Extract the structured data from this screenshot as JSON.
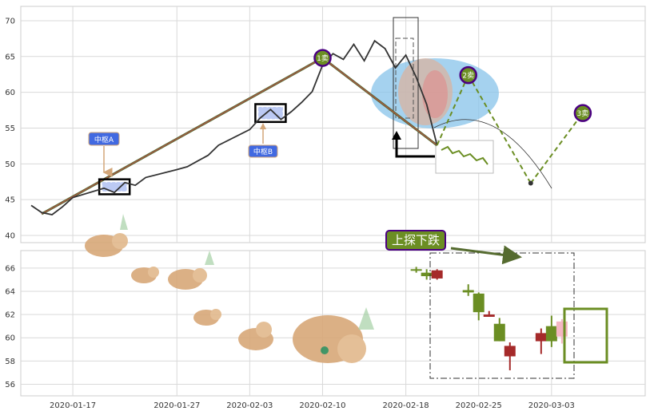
{
  "colors": {
    "price_line": "#333333",
    "grid": "#d9d9d9",
    "axis_box": "#cccccc",
    "up_candle": "#6b8e23",
    "down_candle": "#a52a2a",
    "pivot_fill": "#4169e1",
    "stroke_line": "#556b2f",
    "ellipse_fill": "#87c3ea",
    "badge_fill": "#6b8e23",
    "badge_border": "#4b0082"
  },
  "chart_data": [
    {
      "type": "line",
      "panel": "top",
      "ylim": [
        39,
        72
      ],
      "yticks": [
        40,
        45,
        50,
        55,
        60,
        65,
        70
      ],
      "xlim": [
        "2020-01-12",
        "2020-03-12"
      ],
      "xticks": [
        "2020-01-17",
        "2020-01-27",
        "2020-02-03",
        "2020-02-10",
        "2020-02-18",
        "2020-02-25",
        "2020-03-03"
      ],
      "series": [
        {
          "values": [
            [
              "2020-01-13",
              44.2
            ],
            [
              "2020-01-14",
              43.2
            ],
            [
              "2020-01-15",
              42.9
            ],
            [
              "2020-01-16",
              44.0
            ],
            [
              "2020-01-17",
              45.3
            ],
            [
              "2020-01-20",
              46.6
            ],
            [
              "2020-01-21",
              46.0
            ],
            [
              "2020-01-22",
              47.4
            ],
            [
              "2020-01-23",
              47.0
            ],
            [
              "2020-01-24",
              48.1
            ],
            [
              "2020-01-27",
              49.2
            ],
            [
              "2020-01-28",
              49.6
            ],
            [
              "2020-01-29",
              50.4
            ],
            [
              "2020-01-30",
              51.2
            ],
            [
              "2020-01-31",
              52.6
            ],
            [
              "2020-02-03",
              54.8
            ],
            [
              "2020-02-04",
              56.4
            ],
            [
              "2020-02-05",
              57.6
            ],
            [
              "2020-02-06",
              56.2
            ],
            [
              "2020-02-07",
              57.3
            ],
            [
              "2020-02-08",
              58.6
            ],
            [
              "2020-02-09",
              60.1
            ],
            [
              "2020-02-10",
              63.8
            ],
            [
              "2020-02-11",
              65.4
            ],
            [
              "2020-02-12",
              64.6
            ],
            [
              "2020-02-13",
              66.7
            ],
            [
              "2020-02-14",
              64.4
            ],
            [
              "2020-02-15",
              67.2
            ],
            [
              "2020-02-16",
              66.1
            ],
            [
              "2020-02-17",
              63.4
            ],
            [
              "2020-02-18",
              65.2
            ],
            [
              "2020-02-19",
              62.1
            ],
            [
              "2020-02-20",
              58.3
            ],
            [
              "2020-02-21",
              52.6
            ]
          ]
        }
      ],
      "pivots": [
        {
          "label": "中枢A",
          "x_start": "2020-01-20",
          "x_end": "2020-01-22",
          "y_low": 46.2,
          "y_high": 47.4
        },
        {
          "label": "中枢B",
          "x_start": "2020-02-04",
          "x_end": "2020-02-06",
          "y_low": 56.3,
          "y_high": 57.9
        }
      ],
      "strokes": [
        {
          "from": [
            "2020-01-14",
            43.0
          ],
          "to": [
            "2020-02-10",
            64.8
          ]
        },
        {
          "from": [
            "2020-02-10",
            64.8
          ],
          "to": [
            "2020-02-21",
            52.6
          ]
        }
      ],
      "forecast": [
        {
          "from": [
            "2020-02-21",
            52.6
          ],
          "to": [
            "2020-02-24",
            62.4
          ]
        },
        {
          "from": [
            "2020-02-24",
            62.4
          ],
          "to": [
            "2020-03-01",
            47.3
          ]
        },
        {
          "from": [
            "2020-03-01",
            47.3
          ],
          "to": [
            "2020-03-06",
            57.1
          ]
        }
      ],
      "badges": [
        {
          "label": "1卖",
          "x": "2020-02-10",
          "y": 64.8
        },
        {
          "label": "2卖",
          "x": "2020-02-24",
          "y": 62.4
        },
        {
          "label": "3卖",
          "x": "2020-03-06",
          "y": 57.1
        }
      ]
    },
    {
      "type": "candlestick",
      "panel": "bottom",
      "ylim": [
        55,
        67.5
      ],
      "yticks": [
        56,
        58,
        60,
        62,
        64,
        66
      ],
      "candles": [
        {
          "date": "2020-02-19",
          "open": 65.9,
          "high": 66.1,
          "low": 65.6,
          "close": 65.8,
          "color": "up"
        },
        {
          "date": "2020-02-20",
          "open": 65.6,
          "high": 65.9,
          "low": 65.0,
          "close": 65.3,
          "color": "up"
        },
        {
          "date": "2020-02-21",
          "open": 65.8,
          "high": 65.9,
          "low": 65.0,
          "close": 65.1,
          "color": "down"
        },
        {
          "date": "2020-02-24",
          "open": 64.1,
          "high": 64.6,
          "low": 63.6,
          "close": 63.9,
          "color": "up"
        },
        {
          "date": "2020-02-25",
          "open": 63.8,
          "high": 63.9,
          "low": 61.5,
          "close": 62.2,
          "color": "up"
        },
        {
          "date": "2020-02-26",
          "open": 62.0,
          "high": 62.3,
          "low": 61.8,
          "close": 61.8,
          "color": "down"
        },
        {
          "date": "2020-02-27",
          "open": 61.2,
          "high": 61.7,
          "low": 59.7,
          "close": 59.7,
          "color": "up"
        },
        {
          "date": "2020-02-28",
          "open": 59.3,
          "high": 59.6,
          "low": 57.2,
          "close": 58.4,
          "color": "down"
        },
        {
          "date": "2020-03-02",
          "open": 60.4,
          "high": 60.8,
          "low": 58.6,
          "close": 59.7,
          "color": "down"
        },
        {
          "date": "2020-03-03",
          "open": 59.7,
          "high": 61.9,
          "low": 59.2,
          "close": 61.0,
          "color": "up"
        },
        {
          "date": "2020-03-04",
          "open": 61.4,
          "high": 61.6,
          "low": 59.5,
          "close": 60.1,
          "color": "pink"
        }
      ],
      "annotation": "上探下跌"
    }
  ]
}
